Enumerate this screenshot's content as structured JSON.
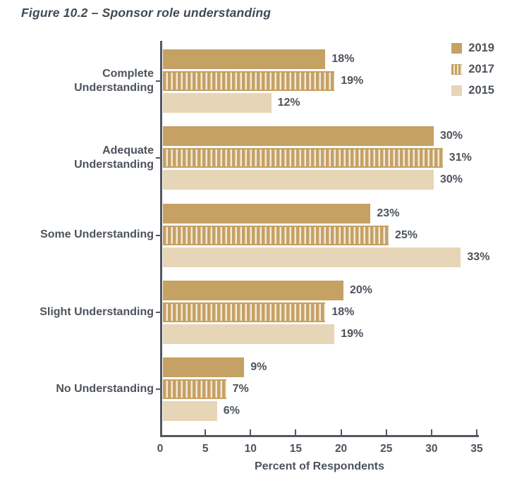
{
  "title": "Figure 10.2 – Sponsor role understanding",
  "colors": {
    "bar_solid": "#c6a164",
    "bar_light": "#e7d5b7",
    "stripe_gap": "#f2e9d8",
    "axis": "#54585f",
    "text": "#4d535b",
    "title_text": "#3f4a54"
  },
  "legend": {
    "position": "top-right",
    "items": [
      {
        "label": "2019",
        "style": "solid"
      },
      {
        "label": "2017",
        "style": "striped"
      },
      {
        "label": "2015",
        "style": "light"
      }
    ]
  },
  "chart_data": {
    "type": "bar",
    "orientation": "horizontal",
    "title": "Figure 10.2 – Sponsor role understanding",
    "categories": [
      "Complete Understanding",
      "Adequate Understanding",
      "Some Understanding",
      "Slight Understanding",
      "No Understanding"
    ],
    "series": [
      {
        "name": "2019",
        "style": "solid",
        "values": [
          18,
          30,
          23,
          20,
          9
        ]
      },
      {
        "name": "2017",
        "style": "striped",
        "values": [
          19,
          31,
          25,
          18,
          7
        ]
      },
      {
        "name": "2015",
        "style": "light",
        "values": [
          12,
          30,
          33,
          19,
          6
        ]
      }
    ],
    "value_suffix": "%",
    "xlabel": "Percent of Respondents",
    "xlim": [
      0,
      35
    ],
    "xticks": [
      0,
      5,
      10,
      15,
      20,
      25,
      30,
      35
    ],
    "grid": false,
    "legend_position": "top-right"
  }
}
